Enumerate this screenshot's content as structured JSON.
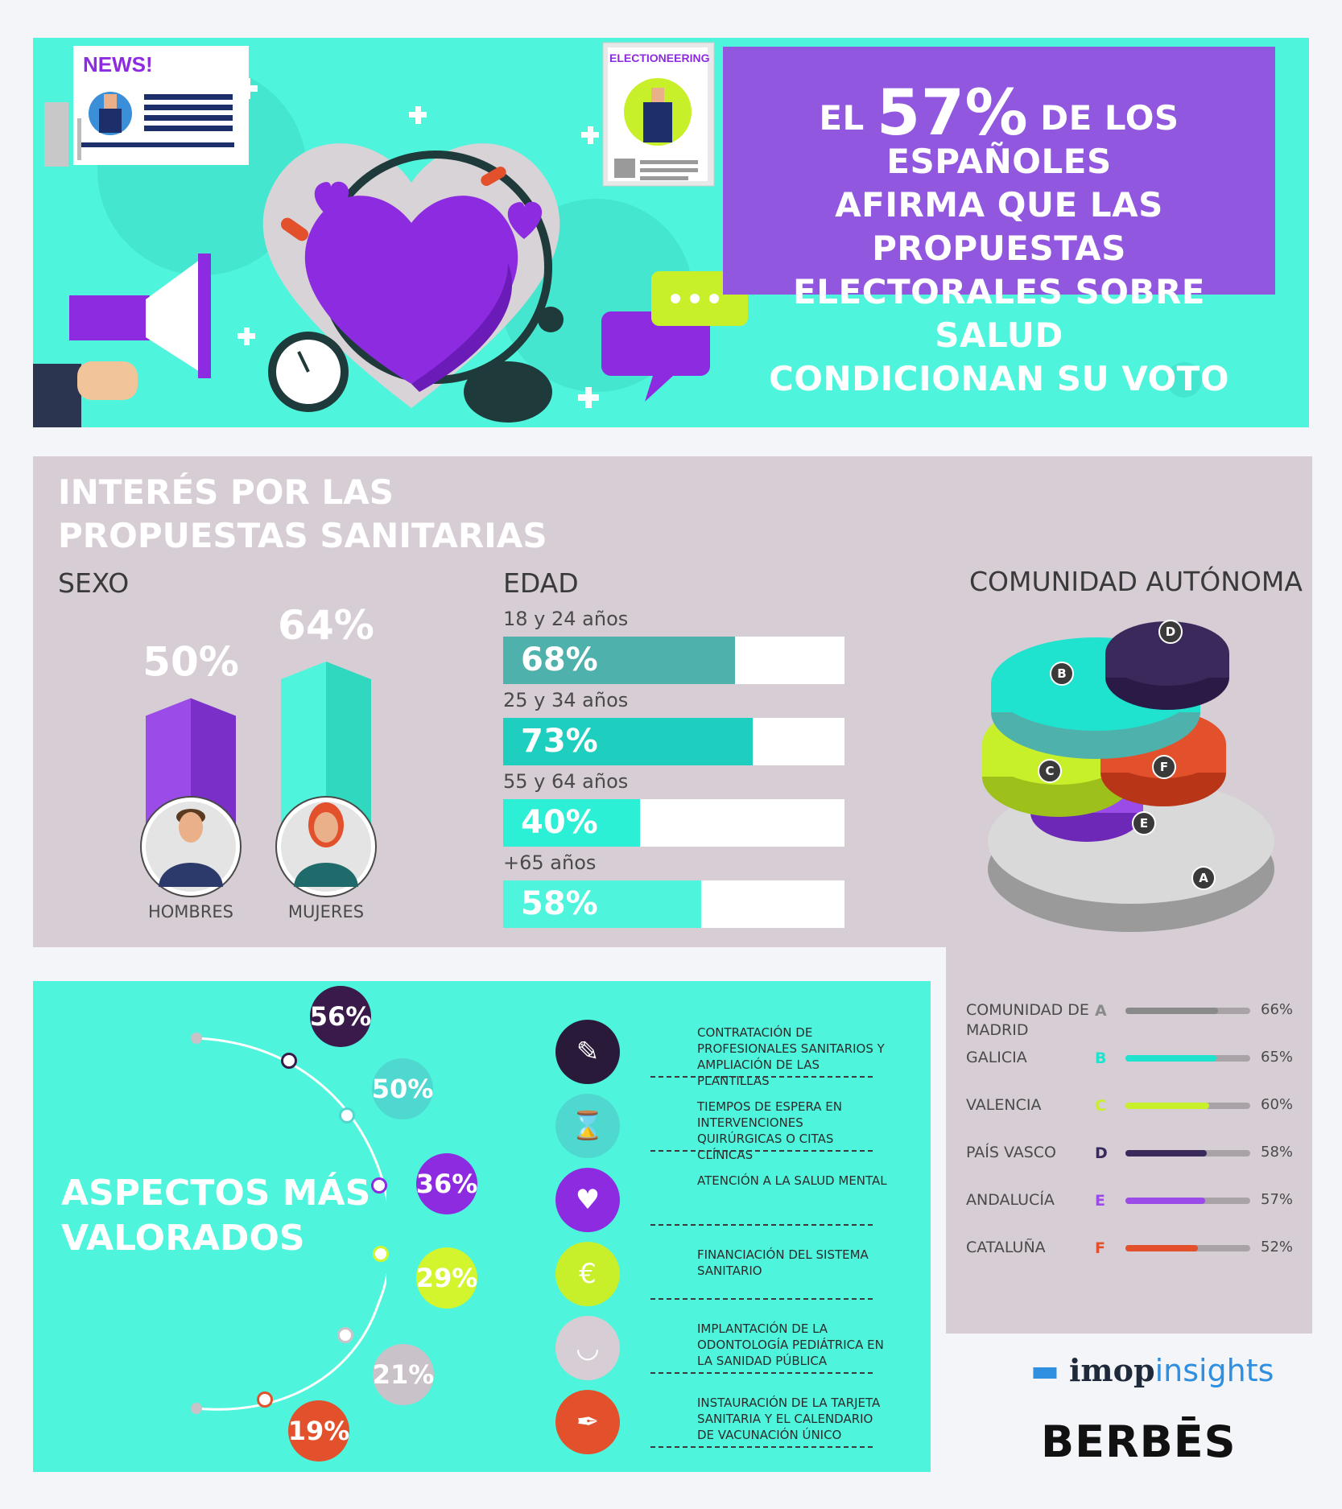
{
  "headline": {
    "prefix": "EL",
    "big": "57%",
    "line1_rest": "DE LOS ESPAÑOLES",
    "line2": "AFIRMA QUE LAS PROPUESTAS",
    "line3": "ELECTORALES SOBRE SALUD",
    "line4": "CONDICIONAN SU VOTO"
  },
  "hero": {
    "news_label": "NEWS!",
    "poster_label": "ELECTIONEERING"
  },
  "interest": {
    "title_line1": "INTERÉS POR LAS",
    "title_line2": "PROPUESTAS SANITARIAS",
    "sex_title": "SEXO",
    "age_title": "EDAD",
    "region_title": "COMUNIDAD AUTÓNOMA"
  },
  "chart_data": [
    {
      "type": "bar",
      "title": "SEXO",
      "categories": [
        "HOMBRES",
        "MUJERES"
      ],
      "values": [
        50,
        64
      ],
      "labels": [
        "50%",
        "64%"
      ],
      "colors": [
        "#9a4be8",
        "#4ef5dc"
      ]
    },
    {
      "type": "bar",
      "title": "EDAD",
      "categories": [
        "18 y 24 años",
        "25 y 34 años",
        "55 y 64 años",
        "+65 años"
      ],
      "values": [
        68,
        73,
        40,
        58
      ],
      "labels": [
        "68%",
        "73%",
        "40%",
        "58%"
      ],
      "colors": [
        "#4fb1ab",
        "#1ecfbf",
        "#2cf0d6",
        "#4ef5dc"
      ],
      "xlim": [
        0,
        100
      ]
    },
    {
      "type": "bar",
      "title": "COMUNIDAD AUTÓNOMA",
      "categories": [
        "COMUNIDAD DE MADRID",
        "GALICIA",
        "VALENCIA",
        "PAÍS VASCO",
        "ANDALUCÍA",
        "CATALUÑA"
      ],
      "letters": [
        "A",
        "B",
        "C",
        "D",
        "E",
        "F"
      ],
      "values": [
        66,
        65,
        60,
        58,
        57,
        52
      ],
      "labels": [
        "66%",
        "65%",
        "60%",
        "58%",
        "57%",
        "52%"
      ],
      "colors": [
        "#8a8a8a",
        "#1fe3cf",
        "#c8f02a",
        "#3a2a5c",
        "#9a4be8",
        "#e2502c"
      ]
    }
  ],
  "aspects": {
    "title_line1": "ASPECTOS MÁS",
    "title_line2": "VALORADOS",
    "items": [
      {
        "value": "56%",
        "text": "CONTRATACIÓN DE PROFESIONALES SANITARIOS Y AMPLIACIÓN DE LAS PLANTILLAS",
        "color": "#3a1a4a"
      },
      {
        "value": "50%",
        "text": "TIEMPOS DE ESPERA EN INTERVENCIONES QUIRÚRGICAS O CITAS CLÍNICAS",
        "color": "#4fd8cf"
      },
      {
        "value": "36%",
        "text": "ATENCIÓN A LA SALUD MENTAL",
        "color": "#8c2be0"
      },
      {
        "value": "29%",
        "text": "FINANCIACIÓN DEL SISTEMA SANITARIO",
        "color": "#d2f52e"
      },
      {
        "value": "21%",
        "text": "IMPLANTACIÓN DE LA ODONTOLOGÍA PEDIÁTRICA EN LA SANIDAD PÚBLICA",
        "color": "#c9c2c8"
      },
      {
        "value": "19%",
        "text": "INSTAURACIÓN DE LA TARJETA SANITARIA Y EL CALENDARIO DE VACUNACIÓN ÚNICO",
        "color": "#e2502c"
      }
    ]
  },
  "logos": {
    "imop_main": "imop",
    "imop_sub": "insights",
    "berbes": "BERBĒS"
  }
}
